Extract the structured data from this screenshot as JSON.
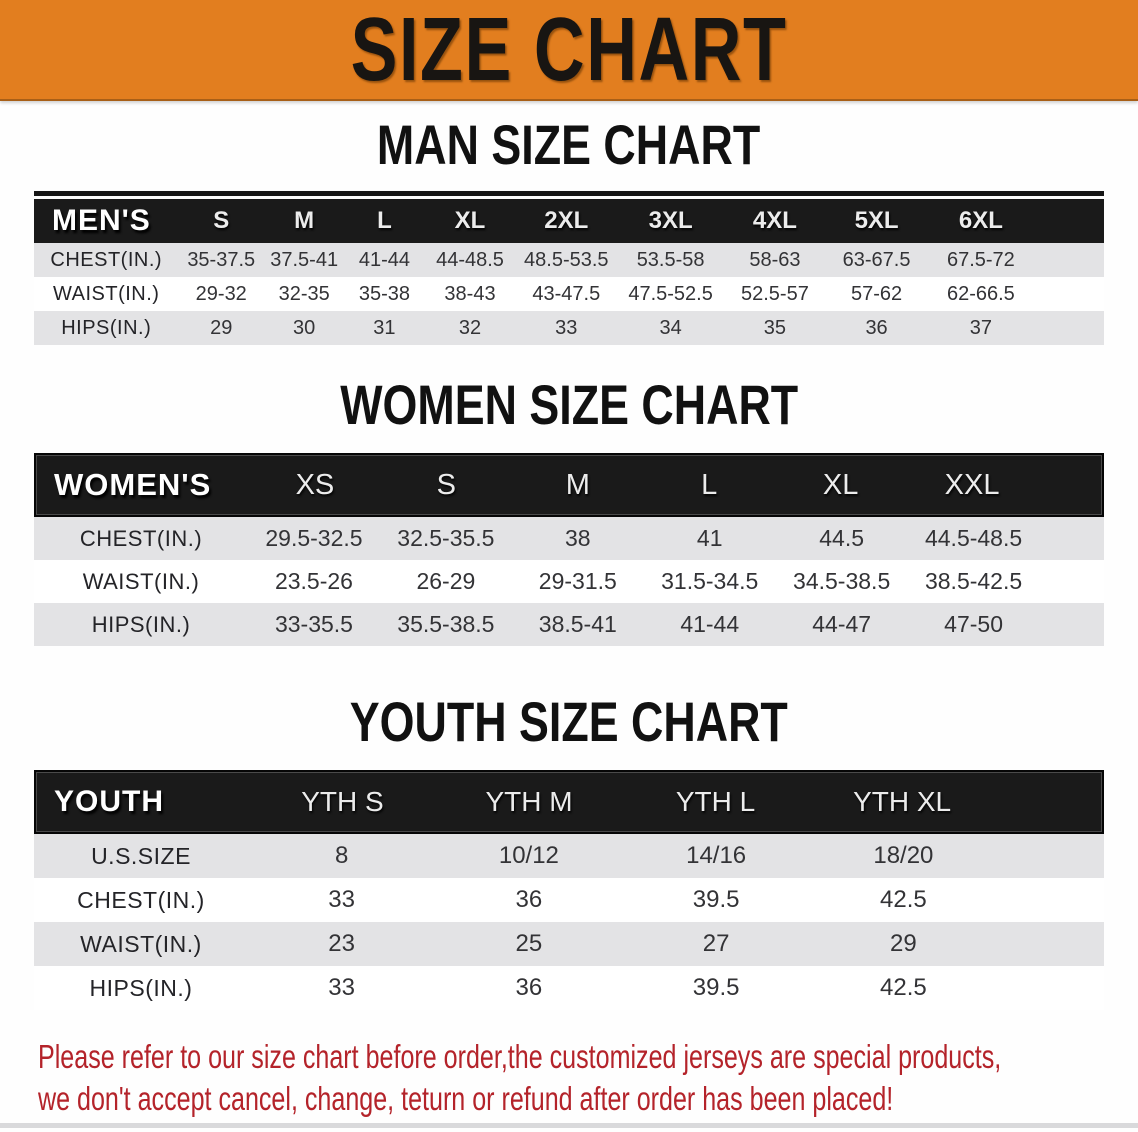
{
  "banner": {
    "title": "SIZE CHART",
    "bg_color": "#E27E1F"
  },
  "colors": {
    "banner_bg": "#E27E1F",
    "header_bar_bg": "#1A1A1A",
    "shaded_row_bg": "#E3E3E5",
    "note_text": "#B4232A"
  },
  "sections": [
    {
      "heading": "MAN SIZE CHART",
      "corner_label": "MEN'S",
      "columns": [
        "S",
        "M",
        "L",
        "XL",
        "2XL",
        "3XL",
        "4XL",
        "5XL",
        "6XL"
      ],
      "rows": [
        {
          "label": "CHEST(IN.)",
          "values": [
            "35-37.5",
            "37.5-41",
            "41-44",
            "44-48.5",
            "48.5-53.5",
            "53.5-58",
            "58-63",
            "63-67.5",
            "67.5-72"
          ]
        },
        {
          "label": "WAIST(IN.)",
          "values": [
            "29-32",
            "32-35",
            "35-38",
            "38-43",
            "43-47.5",
            "47.5-52.5",
            "52.5-57",
            "57-62",
            "62-66.5"
          ]
        },
        {
          "label": "HIPS(IN.)",
          "values": [
            "29",
            "30",
            "31",
            "32",
            "33",
            "34",
            "35",
            "36",
            "37"
          ]
        }
      ]
    },
    {
      "heading": "WOMEN SIZE CHART",
      "corner_label": "WOMEN'S",
      "columns": [
        "XS",
        "S",
        "M",
        "L",
        "XL",
        "XXL"
      ],
      "rows": [
        {
          "label": "CHEST(IN.)",
          "values": [
            "29.5-32.5",
            "32.5-35.5",
            "38",
            "41",
            "44.5",
            "44.5-48.5"
          ]
        },
        {
          "label": "WAIST(IN.)",
          "values": [
            "23.5-26",
            "26-29",
            "29-31.5",
            "31.5-34.5",
            "34.5-38.5",
            "38.5-42.5"
          ]
        },
        {
          "label": "HIPS(IN.)",
          "values": [
            "33-35.5",
            "35.5-38.5",
            "38.5-41",
            "41-44",
            "44-47",
            "47-50"
          ]
        }
      ]
    },
    {
      "heading": "YOUTH SIZE CHART",
      "corner_label": "YOUTH",
      "columns": [
        "YTH S",
        "YTH M",
        "YTH L",
        "YTH XL"
      ],
      "rows": [
        {
          "label": "U.S.SIZE",
          "values": [
            "8",
            "10/12",
            "14/16",
            "18/20"
          ]
        },
        {
          "label": "CHEST(IN.)",
          "values": [
            "33",
            "36",
            "39.5",
            "42.5"
          ]
        },
        {
          "label": "WAIST(IN.)",
          "values": [
            "23",
            "25",
            "27",
            "29"
          ]
        },
        {
          "label": "HIPS(IN.)",
          "values": [
            "33",
            "36",
            "39.5",
            "42.5"
          ]
        }
      ]
    }
  ],
  "note": {
    "line1": "Please refer to our size chart before order,the customized jerseys are special products,",
    "line2": "we don't accept cancel, change, teturn or refund after order has been placed!"
  }
}
